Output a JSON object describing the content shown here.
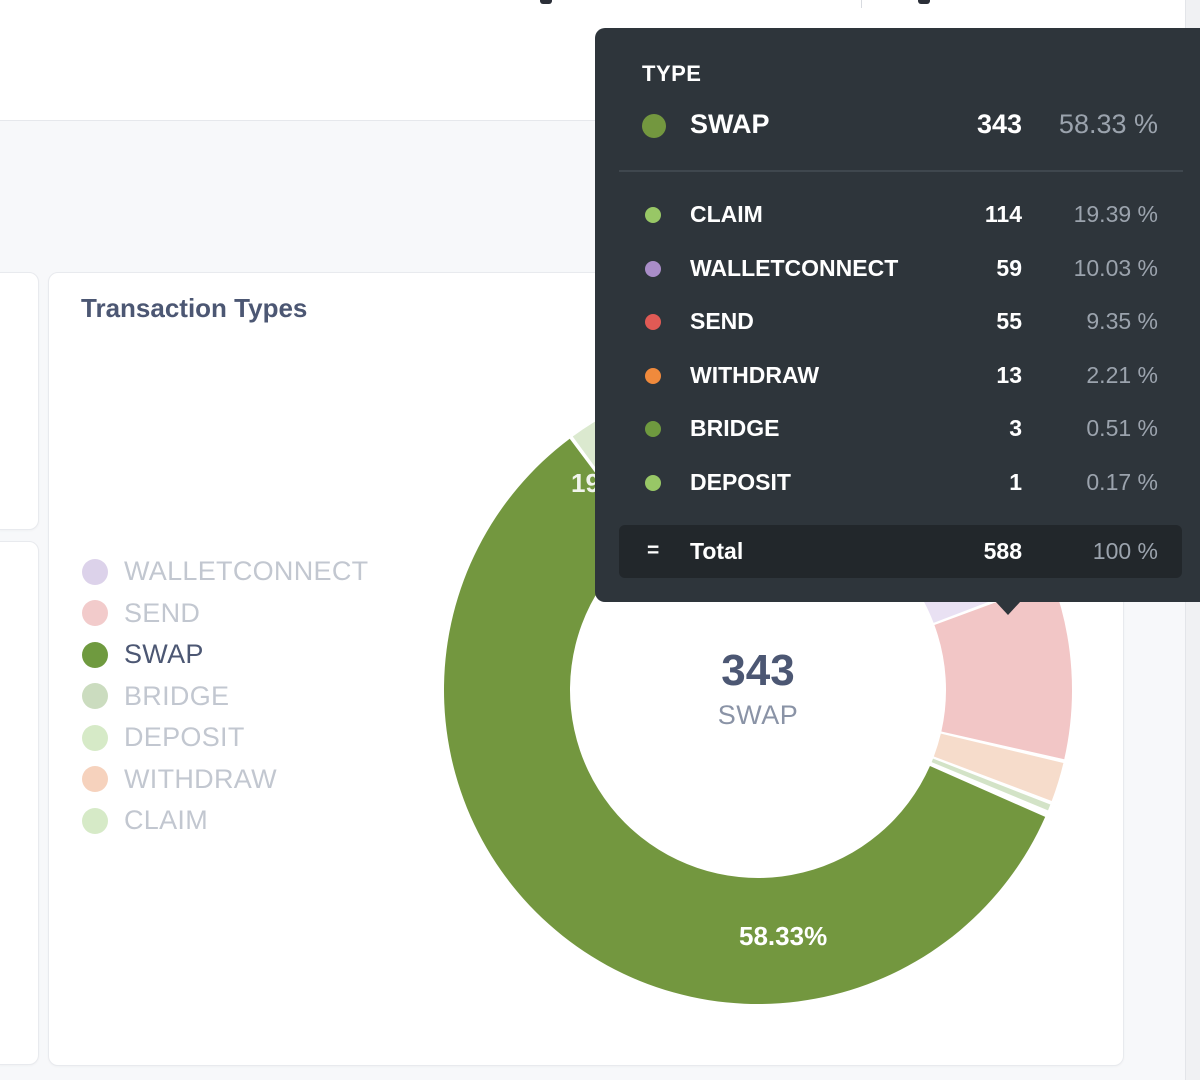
{
  "card": {
    "title": "Transaction Types"
  },
  "legend": [
    {
      "label": "WALLETCONNECT",
      "color": "#dcd2ea",
      "active": false
    },
    {
      "label": "SEND",
      "color": "#f2cbcb",
      "active": false
    },
    {
      "label": "SWAP",
      "color": "#6f9a3f",
      "active": true
    },
    {
      "label": "BRIDGE",
      "color": "#cbdcbf",
      "active": false
    },
    {
      "label": "DEPOSIT",
      "color": "#d6eac7",
      "active": false
    },
    {
      "label": "WITHDRAW",
      "color": "#f6d2bd",
      "active": false
    },
    {
      "label": "CLAIM",
      "color": "#d6eac7",
      "active": false
    }
  ],
  "chart_data": {
    "type": "pie",
    "title": "Transaction Types",
    "categories": [
      "SWAP",
      "CLAIM",
      "WALLETCONNECT",
      "SEND",
      "WITHDRAW",
      "BRIDGE",
      "DEPOSIT"
    ],
    "values": [
      343,
      114,
      59,
      55,
      13,
      3,
      1
    ],
    "percentages": [
      58.33,
      19.39,
      10.03,
      9.35,
      2.21,
      0.51,
      0.17
    ],
    "colors": [
      "#73973f",
      "#dbe9cf",
      "#e9e1f3",
      "#f2c6c6",
      "#f6dccb",
      "#d3e3c7",
      "#dbe9cf"
    ],
    "donut": true,
    "highlighted": "SWAP",
    "center": {
      "value": "343",
      "label": "SWAP"
    },
    "slice_labels": [
      {
        "category": "SWAP",
        "text": "58.33%"
      },
      {
        "category": "CLAIM",
        "text": "19"
      }
    ]
  },
  "tooltip": {
    "heading": "TYPE",
    "main": {
      "name": "SWAP",
      "count": "343",
      "pct": "58.33 %",
      "color": "#73973f"
    },
    "rows": [
      {
        "name": "CLAIM",
        "count": "114",
        "pct": "19.39 %",
        "color": "#98c766"
      },
      {
        "name": "WALLETCONNECT",
        "count": "59",
        "pct": "10.03 %",
        "color": "#a98dc8"
      },
      {
        "name": "SEND",
        "count": "55",
        "pct": "9.35 %",
        "color": "#e05a55"
      },
      {
        "name": "WITHDRAW",
        "count": "13",
        "pct": "2.21 %",
        "color": "#f08a3c"
      },
      {
        "name": "BRIDGE",
        "count": "3",
        "pct": "0.51 %",
        "color": "#6f9a3f"
      },
      {
        "name": "DEPOSIT",
        "count": "1",
        "pct": "0.17 %",
        "color": "#98c766"
      }
    ],
    "total": {
      "symbol": "=",
      "name": "Total",
      "count": "588",
      "pct": "100 %"
    }
  }
}
